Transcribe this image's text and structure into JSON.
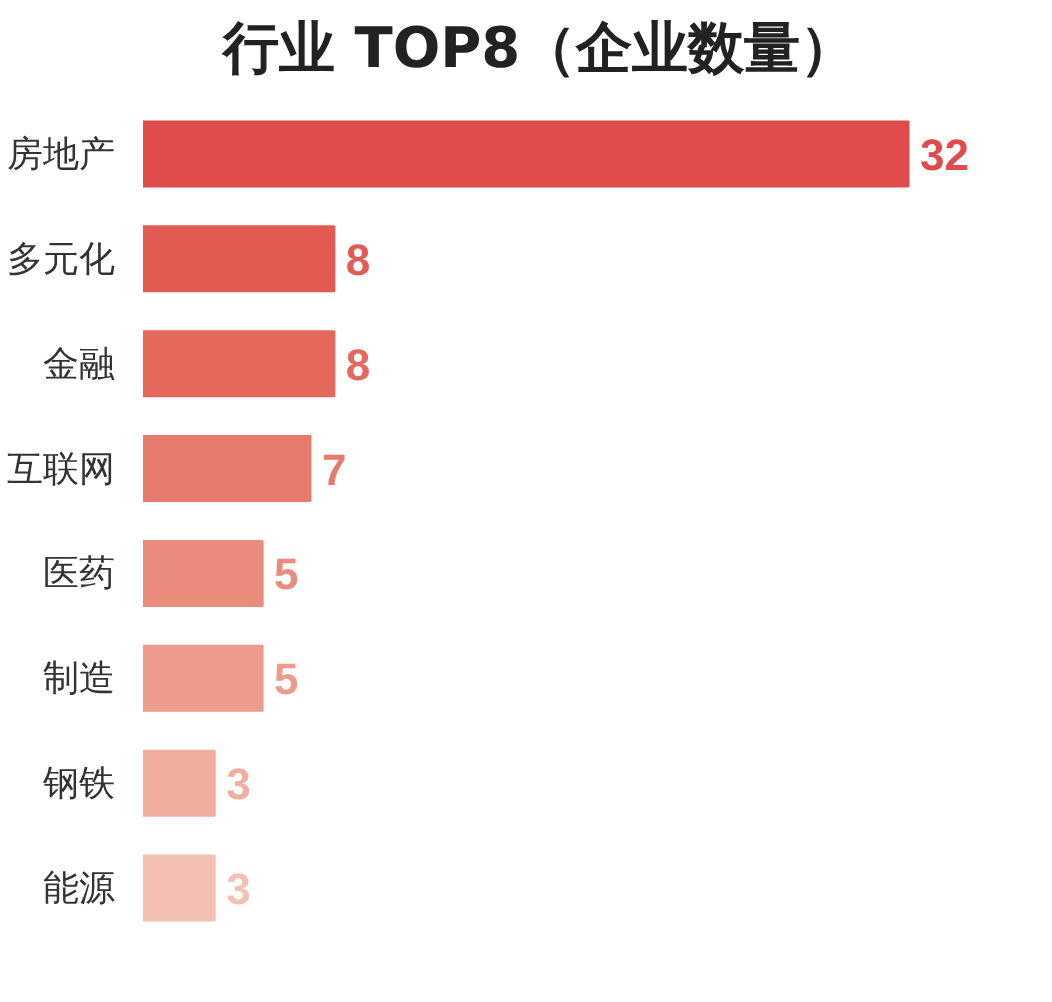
{
  "chart_data": {
    "type": "bar",
    "orientation": "horizontal",
    "title": "行业 TOP8（企业数量）",
    "categories": [
      "房地产",
      "多元化",
      "金融",
      "互联网",
      "医药",
      "制造",
      "钢铁",
      "能源"
    ],
    "values": [
      32,
      8,
      8,
      7,
      5,
      5,
      3,
      3
    ],
    "colors": [
      "#e04b4b",
      "#e25a52",
      "#e4685c",
      "#e67a6c",
      "#ea8c7c",
      "#ed9c8c",
      "#f0ae9f",
      "#f3c0b3"
    ],
    "data_labels": true,
    "grid": false
  }
}
